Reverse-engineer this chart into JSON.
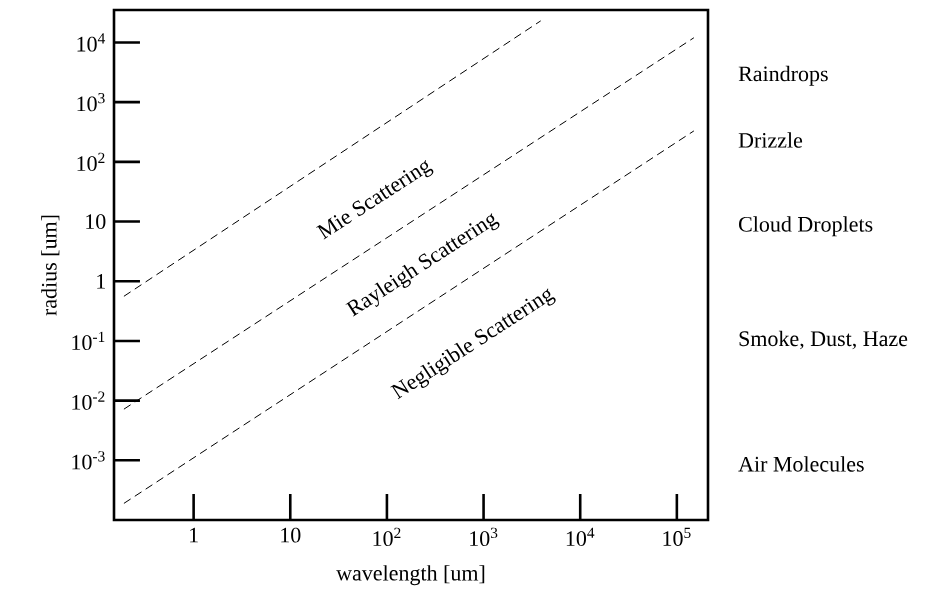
{
  "chart_data": {
    "type": "line",
    "xlabel": "wavelength [um]",
    "ylabel": "radius [um]",
    "log": "xy",
    "line_style": "dashed",
    "xlim": [
      0.15,
      210000
    ],
    "ylim": [
      0.0001,
      35000
    ],
    "xticks": [
      1,
      10,
      {
        "value": 100,
        "label": "10$^{2}$"
      },
      {
        "value": 1000,
        "label": "10$^{3}$"
      },
      {
        "value": 10000,
        "label": "10$^{4}$"
      },
      {
        "value": 100000,
        "label": "10$^{5}$"
      }
    ],
    "yticks": [
      {
        "value": 0.001,
        "label": "10$^{-3}$"
      },
      {
        "value": 0.01,
        "label": "10$^{-2}$"
      },
      {
        "value": 0.1,
        "label": "10$^{-1}$"
      },
      1,
      10,
      {
        "value": 100,
        "label": "10$^{2}$"
      },
      {
        "value": 1000,
        "label": "10$^{3}$"
      },
      {
        "value": 10000,
        "label": "10$^{4}$"
      }
    ],
    "series": [
      {
        "color": "#000000",
        "x": [
          0.19,
          3900
        ],
        "values": [
          0.56,
          23000
        ]
      },
      {
        "color": "#000000",
        "x": [
          0.19,
          150000
        ],
        "values": [
          0.0072,
          12000
        ]
      },
      {
        "color": "#000000",
        "x": [
          0.19,
          150000
        ],
        "values": [
          0.00019,
          330
        ]
      }
    ],
    "annotations": [
      "Mie Scattering",
      "Rayleigh Scattering",
      "Negligible Scattering",
      "Raindrops",
      "Drizzle",
      "Cloud Droplets",
      "Smoke, Dust, Haze",
      "Air Molecules"
    ]
  }
}
